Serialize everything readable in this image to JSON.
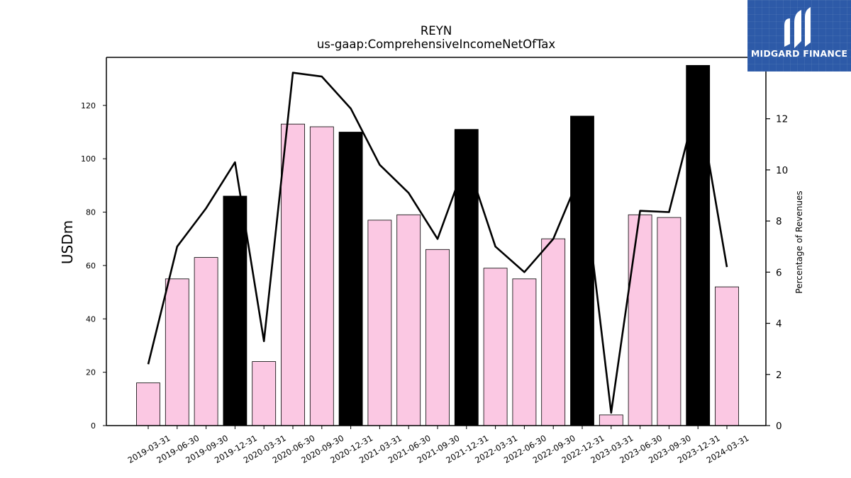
{
  "logo": {
    "text": "MIDGARD FINANCE",
    "icon": "midgard-logo-icon",
    "color": "#2d5aa8"
  },
  "chart_data": {
    "type": "bar",
    "title": "REYN",
    "subtitle": "us-gaap:ComprehensiveIncomeNetOfTax",
    "ylabel": "USDm",
    "y2label": "Percentage of Revenues",
    "ylim": [
      0,
      138
    ],
    "y2lim": [
      0,
      14.4
    ],
    "yticks": [
      0,
      20,
      40,
      60,
      80,
      100,
      120
    ],
    "y2ticks": [
      0,
      2,
      4,
      6,
      8,
      10,
      12
    ],
    "categories": [
      "2019-03-31",
      "2019-06-30",
      "2019-09-30",
      "2019-12-31",
      "2020-03-31",
      "2020-06-30",
      "2020-09-30",
      "2020-12-31",
      "2021-03-31",
      "2021-06-30",
      "2021-09-30",
      "2021-12-31",
      "2022-03-31",
      "2022-06-30",
      "2022-09-30",
      "2022-12-31",
      "2023-03-31",
      "2023-06-30",
      "2023-09-30",
      "2023-12-31",
      "2024-03-31"
    ],
    "series": [
      {
        "type": "bar",
        "values": [
          16,
          55,
          63,
          86,
          24,
          113,
          112,
          110,
          77,
          79,
          66,
          111,
          59,
          55,
          70,
          116,
          4,
          79,
          78,
          135,
          52
        ],
        "highlight": [
          false,
          false,
          false,
          true,
          false,
          false,
          false,
          true,
          false,
          false,
          false,
          true,
          false,
          false,
          false,
          true,
          false,
          false,
          false,
          true,
          false
        ],
        "color": "#fbc8e3",
        "highlight_color": "#000000"
      },
      {
        "type": "line",
        "axis": "right",
        "values": [
          2.4,
          7.0,
          8.5,
          10.3,
          3.3,
          13.8,
          13.65,
          12.4,
          10.2,
          9.1,
          7.3,
          10.4,
          7.0,
          6.0,
          7.3,
          10.0,
          0.5,
          8.4,
          8.35,
          12.8,
          6.2
        ],
        "color": "#000000"
      }
    ],
    "grid": false,
    "legend": "none"
  }
}
